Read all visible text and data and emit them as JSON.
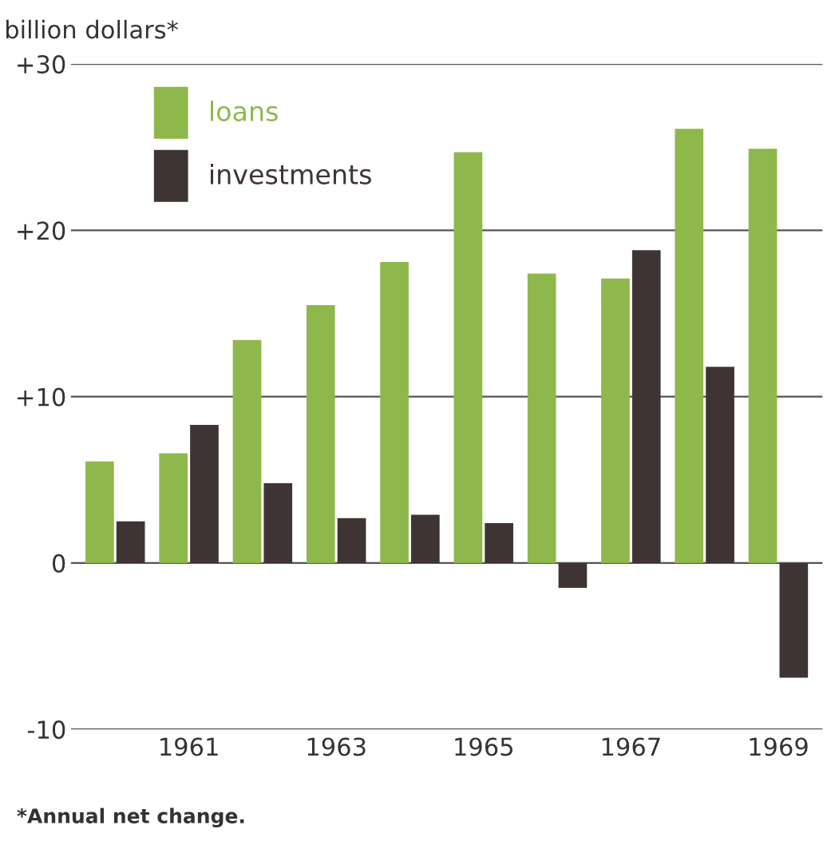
{
  "chart_data": {
    "type": "bar",
    "ylabel": "billion dollars*",
    "categories": [
      null,
      "1961",
      null,
      "1963",
      null,
      "1965",
      null,
      "1967",
      null,
      "1969"
    ],
    "series": [
      {
        "name": "loans",
        "color": "#8fb84c",
        "values": [
          6.1,
          6.6,
          13.4,
          15.5,
          18.1,
          24.7,
          17.4,
          17.1,
          26.1,
          24.9
        ]
      },
      {
        "name": "investments",
        "color": "#3e3434",
        "values": [
          2.5,
          8.3,
          4.8,
          2.7,
          2.9,
          2.4,
          -1.5,
          18.8,
          11.8,
          -6.9
        ]
      }
    ],
    "ylim": [
      -10,
      30
    ],
    "yticks": [
      {
        "value": 30,
        "label": "+30"
      },
      {
        "value": 20,
        "label": "+20"
      },
      {
        "value": 10,
        "label": "+10"
      },
      0,
      -10
    ],
    "grid": "y",
    "legend": "top left",
    "annotations": [
      "*Annual net change."
    ]
  }
}
